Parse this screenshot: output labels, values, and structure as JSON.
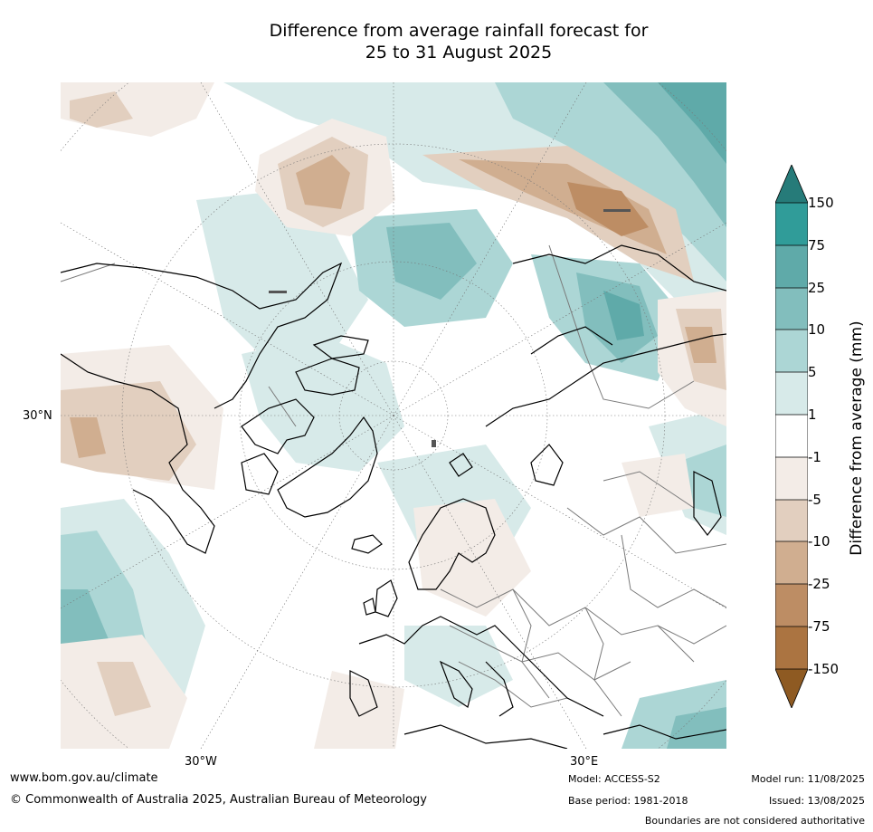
{
  "title": {
    "line1": "Difference from average rainfall forecast for",
    "line2": "25 to 31 August 2025"
  },
  "map": {
    "projection": "north polar stereographic",
    "gridline_labels": {
      "lat_30n": "30°N",
      "lon_30w": "30°W",
      "lon_30e": "30°E"
    },
    "colors": {
      "coast": "#000000",
      "borders": "#7a7a7a",
      "graticule": "#777777"
    }
  },
  "colorbar": {
    "title": "Difference from average (mm)",
    "ticks": [
      "150",
      "75",
      "25",
      "10",
      "5",
      "1",
      "-1",
      "-5",
      "-10",
      "-25",
      "-75",
      "-150"
    ],
    "colors": {
      "gt150": "#267b79",
      "c75_150": "#309c99",
      "c25_75": "#5faaa9",
      "c10_25": "#82bebd",
      "c5_10": "#acd6d5",
      "c1_5": "#d7eae9",
      "neutral": "#ffffff",
      "cm5_m1": "#f3ece7",
      "cm10_m5": "#e2cfbf",
      "cm25_m10": "#d0ae90",
      "cm75_m25": "#bd8d64",
      "cm150_m75": "#ab7441",
      "lt_m150": "#8e5a22"
    }
  },
  "footer": {
    "website": "www.bom.gov.au/climate",
    "copyright": "© Commonwealth of Australia 2025, Australian Bureau of Meteorology",
    "model": "Model: ACCESS-S2",
    "base_period": "Base period: 1981-2018",
    "model_run": "Model run: 11/08/2025",
    "issued": "Issued: 13/08/2025",
    "disclaimer": "Boundaries are not considered authoritative"
  }
}
